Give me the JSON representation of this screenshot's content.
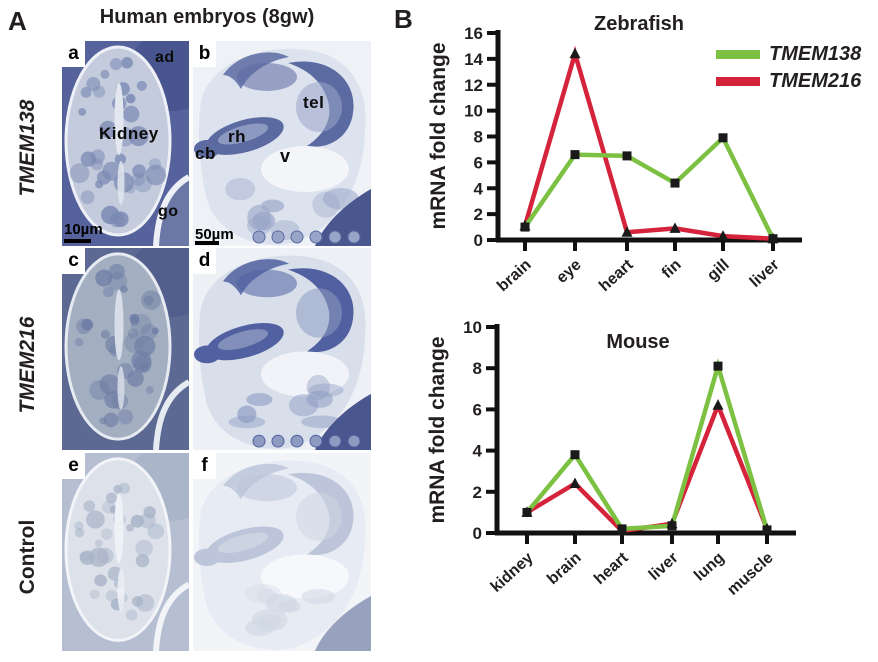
{
  "panel_a": {
    "label": "A",
    "title": "Human embryos (8gw)",
    "rows": [
      {
        "row_label": "TMEM138",
        "kidney_image": {
          "letter": "a",
          "labels": {
            "ad": "ad",
            "kidney": "Kidney",
            "go": "go"
          },
          "scale_bar": "10µm"
        },
        "head_image": {
          "letter": "b",
          "labels": {
            "tel": "tel",
            "rh": "rh",
            "cb": "cb",
            "v": "v"
          },
          "scale_bar": "50µm"
        }
      },
      {
        "row_label": "TMEM216",
        "kidney_image": {
          "letter": "c"
        },
        "head_image": {
          "letter": "d"
        }
      },
      {
        "row_label": "Control",
        "kidney_image": {
          "letter": "e"
        },
        "head_image": {
          "letter": "f"
        }
      }
    ]
  },
  "panel_b": {
    "label": "B"
  },
  "chart_data": [
    {
      "type": "line",
      "title": "Zebrafish",
      "ylabel": "mRNA fold change",
      "xlabel": "",
      "categories": [
        "brain",
        "eye",
        "heart",
        "fin",
        "gill",
        "liver"
      ],
      "ylim": [
        0,
        16
      ],
      "yticks": [
        0,
        2,
        4,
        6,
        8,
        10,
        12,
        14,
        16
      ],
      "grid": false,
      "legend_position": "top-right",
      "axis_color": "#111111",
      "marker_color": "#1a1a1a",
      "series": [
        {
          "name": "TMEM138",
          "color": "#7cc142",
          "marker": "square",
          "values": [
            1.0,
            6.6,
            6.5,
            4.4,
            7.9,
            0.1
          ]
        },
        {
          "name": "TMEM216",
          "color": "#d5233b",
          "marker": "triangle",
          "values": [
            1.1,
            14.4,
            0.6,
            0.9,
            0.3,
            0.1
          ]
        }
      ]
    },
    {
      "type": "line",
      "title": "Mouse",
      "ylabel": "mRNA fold change",
      "xlabel": "",
      "categories": [
        "kidney",
        "brain",
        "heart",
        "liver",
        "lung",
        "muscle"
      ],
      "ylim": [
        0,
        10
      ],
      "yticks": [
        0,
        2,
        4,
        6,
        8,
        10
      ],
      "grid": false,
      "legend_position": "none",
      "axis_color": "#111111",
      "marker_color": "#1a1a1a",
      "series": [
        {
          "name": "TMEM138",
          "color": "#7cc142",
          "marker": "square",
          "values": [
            1.0,
            3.8,
            0.2,
            0.35,
            8.1,
            0.15
          ]
        },
        {
          "name": "TMEM216",
          "color": "#d5233b",
          "marker": "triangle",
          "values": [
            1.0,
            2.4,
            0.1,
            0.45,
            6.2,
            0.2
          ]
        }
      ]
    }
  ]
}
